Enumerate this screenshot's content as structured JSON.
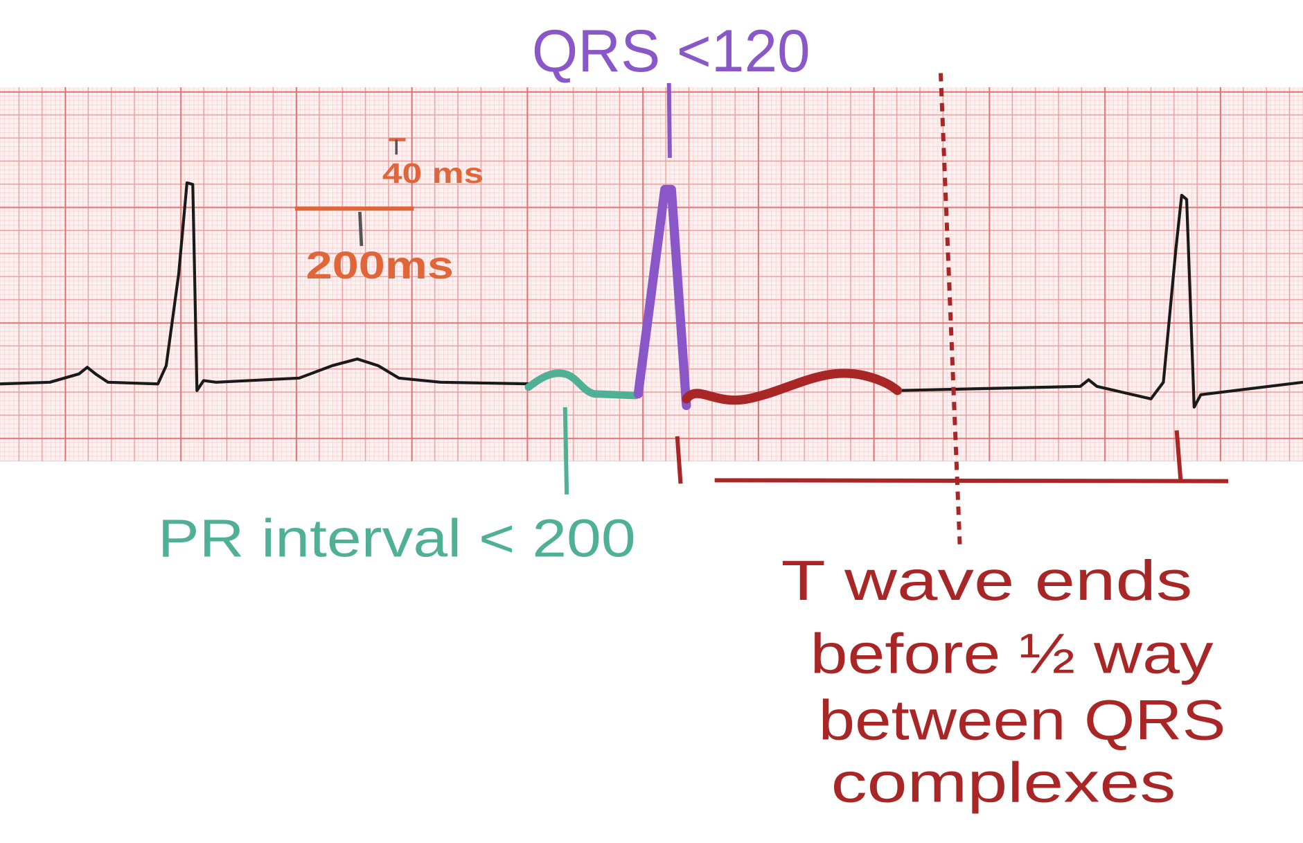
{
  "annotations": {
    "qrs": "QRS <120",
    "scale_small": "40 ms",
    "scale_large": "200ms",
    "pr": "PR interval < 200",
    "t_wave": [
      "T wave ends",
      "before ½ way",
      "between QRS",
      "complexes"
    ]
  }
}
